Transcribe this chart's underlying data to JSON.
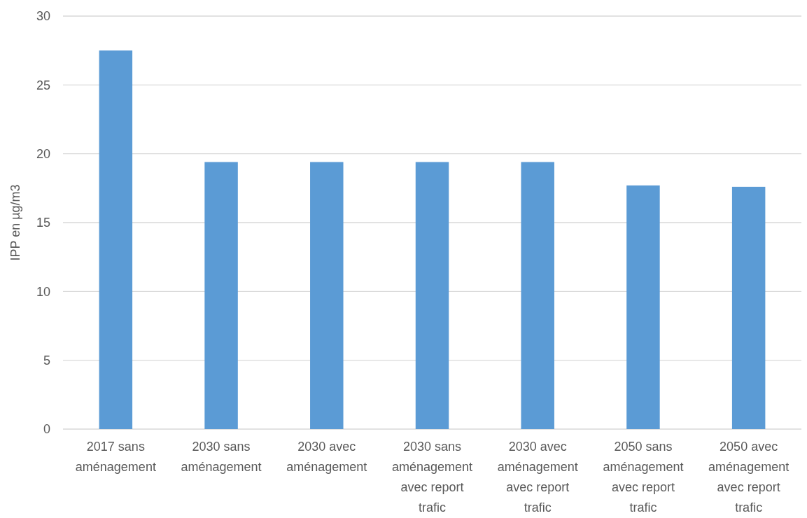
{
  "chart_data": {
    "type": "bar",
    "ylabel": "IPP en µg/m3",
    "categories": [
      "2017 sans aménagement",
      "2030 sans aménagement",
      "2030 avec aménagement",
      "2030 sans aménagement avec report trafic",
      "2030 avec aménagement avec report trafic",
      "2050 sans aménagement avec report trafic",
      "2050 avec aménagement avec report trafic"
    ],
    "values": [
      27.5,
      19.4,
      19.4,
      19.4,
      19.4,
      17.7,
      17.6
    ],
    "color": "#5b9bd5",
    "ylim": [
      0,
      30
    ],
    "yticks": [
      0,
      5,
      10,
      15,
      20,
      25,
      30
    ],
    "grid": "y"
  }
}
